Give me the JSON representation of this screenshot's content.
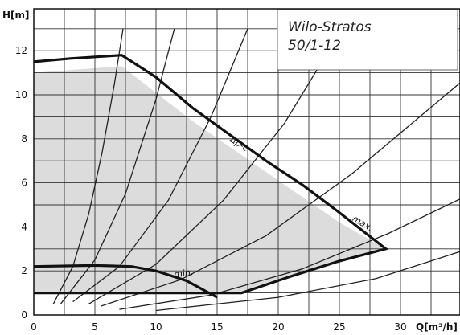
{
  "chart_data": {
    "type": "line",
    "title_line1": "Wilo-Stratos",
    "title_line2": "50/1-12",
    "xlabel": "Q[m³/h]",
    "ylabel": "H[m]",
    "xlim": [
      0,
      35
    ],
    "ylim": [
      0,
      13
    ],
    "x_ticks": [
      0,
      5,
      10,
      15,
      20,
      25,
      30
    ],
    "y_ticks": [
      0,
      2,
      4,
      6,
      8,
      10,
      12
    ],
    "fill_color": "#dcdcdc",
    "operating_region": [
      [
        0,
        11
      ],
      [
        7.2,
        11.3
      ],
      [
        13.0,
        8.8
      ],
      [
        19.5,
        6.3
      ],
      [
        25.0,
        4.2
      ],
      [
        28.8,
        3.0
      ],
      [
        17.0,
        1.0
      ],
      [
        0,
        1.0
      ]
    ],
    "series": [
      {
        "name": "max.",
        "points": [
          [
            0,
            11.5
          ],
          [
            3,
            11.65
          ],
          [
            7.2,
            11.8
          ],
          [
            10,
            10.8
          ],
          [
            13,
            9.4
          ],
          [
            16,
            8.2
          ],
          [
            19,
            7.0
          ],
          [
            22,
            5.9
          ],
          [
            25,
            4.65
          ],
          [
            28.8,
            3.0
          ],
          [
            25,
            2.45
          ],
          [
            21,
            1.75
          ],
          [
            17,
            1.0
          ],
          [
            0,
            1.0
          ]
        ]
      },
      {
        "name": "min.",
        "points": [
          [
            0,
            2.2
          ],
          [
            5,
            2.25
          ],
          [
            8,
            2.2
          ],
          [
            10,
            2.0
          ],
          [
            12.5,
            1.55
          ],
          [
            14,
            1.1
          ],
          [
            15,
            0.8
          ]
        ]
      },
      {
        "name": "Δp-c",
        "points": []
      }
    ],
    "system_curves": [
      {
        "points": [
          [
            1.6,
            0.5
          ],
          [
            3.2,
            2.2
          ],
          [
            4.5,
            4.6
          ],
          [
            5.6,
            7.4
          ],
          [
            6.6,
            10.5
          ],
          [
            7.3,
            13
          ]
        ]
      },
      {
        "points": [
          [
            2.2,
            0.5
          ],
          [
            5,
            2.5
          ],
          [
            7.5,
            5.5
          ],
          [
            10,
            9.8
          ],
          [
            11.5,
            13
          ]
        ]
      },
      {
        "points": [
          [
            3.2,
            0.6
          ],
          [
            7,
            2.2
          ],
          [
            11,
            5.2
          ],
          [
            14.5,
            9
          ],
          [
            17.5,
            13
          ]
        ]
      },
      {
        "points": [
          [
            4.5,
            0.5
          ],
          [
            10,
            2.3
          ],
          [
            15.5,
            5.2
          ],
          [
            20.5,
            8.7
          ],
          [
            25,
            12.8
          ]
        ]
      },
      {
        "points": [
          [
            5.5,
            0.4
          ],
          [
            12,
            1.6
          ],
          [
            19,
            3.6
          ],
          [
            26,
            6.4
          ],
          [
            32,
            9.2
          ],
          [
            35,
            10.6
          ]
        ]
      },
      {
        "points": [
          [
            7,
            0.25
          ],
          [
            14.5,
            0.9
          ],
          [
            22,
            2.1
          ],
          [
            29,
            3.7
          ],
          [
            35,
            5.3
          ]
        ]
      },
      {
        "points": [
          [
            10,
            0.2
          ],
          [
            20,
            0.8
          ],
          [
            28,
            1.65
          ],
          [
            35,
            2.9
          ]
        ]
      }
    ],
    "curve_labels": [
      {
        "text": "Δp-c",
        "x": 16,
        "y": 7.9
      },
      {
        "text": "max.",
        "x": 26,
        "y": 4.3
      },
      {
        "text": "min.",
        "x": 11.5,
        "y": 1.7
      }
    ]
  }
}
